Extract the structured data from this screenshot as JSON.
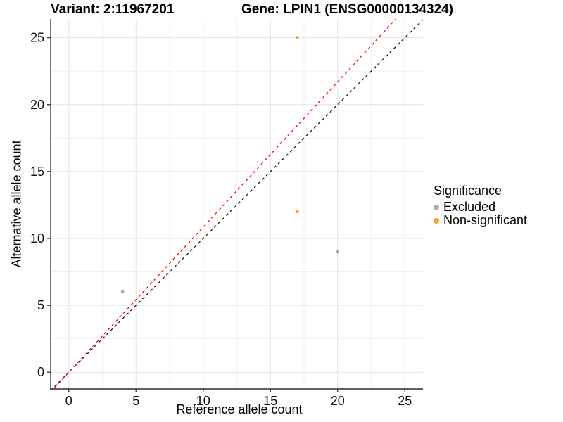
{
  "header": {
    "variant_title": "Variant: 2:11967201",
    "gene_title": "Gene: LPIN1 (ENSG00000134324)"
  },
  "chart_data": {
    "type": "scatter",
    "title": "Variant: 2:11967201   Gene: LPIN1 (ENSG00000134324)",
    "xlabel": "Reference allele count",
    "ylabel": "Alternative allele count",
    "x_ticks": [
      0,
      5,
      10,
      15,
      20,
      25
    ],
    "y_ticks": [
      0,
      5,
      10,
      15,
      20,
      25
    ],
    "x_minor_ticks": [
      2.5,
      7.5,
      12.5,
      17.5,
      22.5
    ],
    "y_minor_ticks": [
      2.5,
      7.5,
      12.5,
      17.5,
      22.5
    ],
    "xlim": [
      -1.35,
      26.35
    ],
    "ylim": [
      -1.25,
      26.4
    ],
    "grid": true,
    "legend_position": "right",
    "series": [
      {
        "name": "Excluded",
        "color": "#ABABAB",
        "points": [
          {
            "x": 4,
            "y": 6
          },
          {
            "x": 20,
            "y": 9
          }
        ]
      },
      {
        "name": "Non-significant",
        "color": "#F9A31E",
        "points": [
          {
            "x": 17,
            "y": 12
          },
          {
            "x": 17,
            "y": 25
          }
        ]
      }
    ],
    "lines": [
      {
        "name": "identity-line",
        "slope": 1.0,
        "intercept": 0,
        "color": "#1A1A1A",
        "style": "dashed"
      },
      {
        "name": "expected-ratio-line",
        "slope": 1.085,
        "intercept": 0,
        "color": "#FF0000",
        "style": "dashed"
      }
    ],
    "legend": {
      "title": "Significance",
      "items": [
        {
          "label": "Excluded",
          "color": "#ABABAB"
        },
        {
          "label": "Non-significant",
          "color": "#F9A31E"
        }
      ]
    },
    "colors": {
      "grid_major": "#E3E3E3",
      "grid_minor": "#F1F1F1",
      "axis_line": "#4A4A4A",
      "tick_label": "#111111"
    }
  }
}
